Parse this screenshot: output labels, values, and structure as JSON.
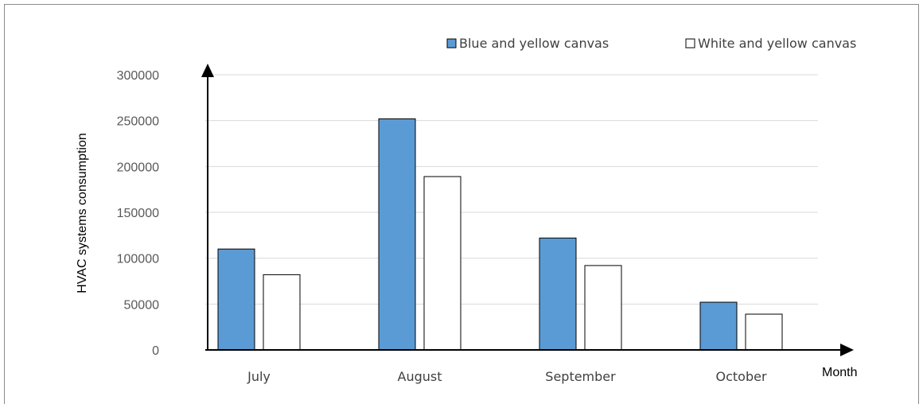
{
  "chart_data": {
    "type": "bar",
    "categories": [
      "July",
      "August",
      "September",
      "October"
    ],
    "series": [
      {
        "name": "Blue and yellow canvas",
        "color": "#5b9bd5",
        "values": [
          110000,
          252000,
          122000,
          52000
        ]
      },
      {
        "name": "White and yellow canvas",
        "color": "#ffffff",
        "values": [
          82000,
          189000,
          92000,
          39000
        ]
      }
    ],
    "xlabel": "Month",
    "ylabel": "HVAC systems consumption",
    "ylim": [
      0,
      300000
    ],
    "yticks": [
      "0",
      "50000",
      "100000",
      "150000",
      "200000",
      "250000",
      "300000"
    ],
    "grid": true,
    "legend_position": "top-right"
  }
}
